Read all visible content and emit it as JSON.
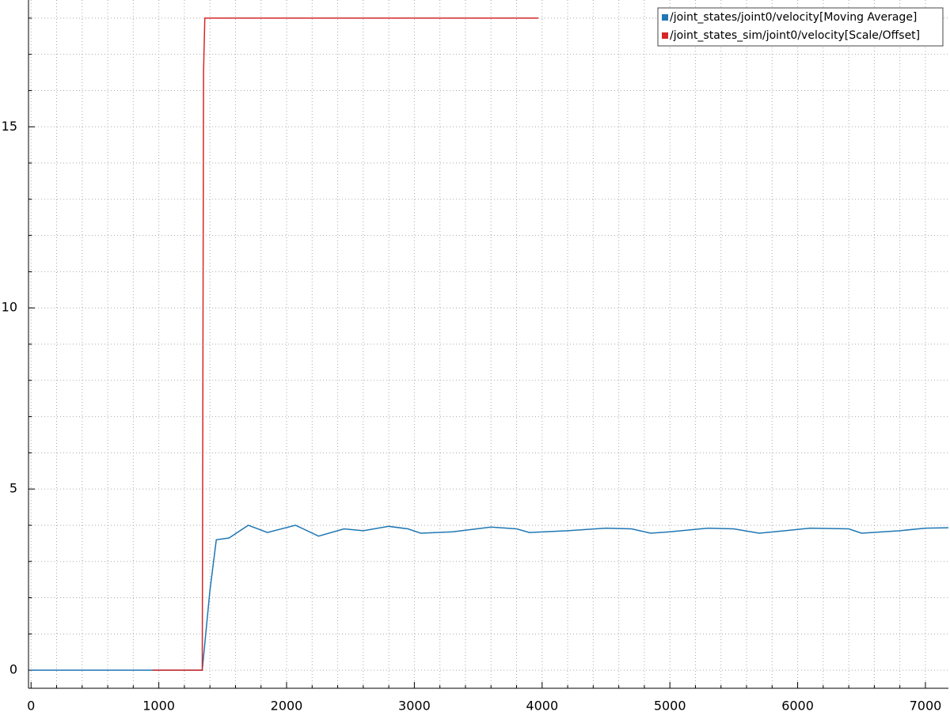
{
  "chart_data": {
    "type": "line",
    "xlim": [
      -20,
      7180
    ],
    "ylim": [
      -0.5,
      18.5
    ],
    "xticks": [
      0,
      1000,
      2000,
      3000,
      4000,
      5000,
      6000,
      7000
    ],
    "yticks": [
      0,
      5,
      10,
      15
    ],
    "minor_xticks": [
      200,
      400,
      600,
      800,
      1200,
      1400,
      1600,
      1800,
      2200,
      2400,
      2600,
      2800,
      3200,
      3400,
      3600,
      3800,
      4200,
      4400,
      4600,
      4800,
      5200,
      5400,
      5600,
      5800,
      6200,
      6400,
      6600,
      6800
    ],
    "minor_yticks": [
      1,
      2,
      3,
      4,
      6,
      7,
      8,
      9,
      11,
      12,
      13,
      14,
      16,
      17,
      18
    ],
    "grid": true,
    "legend": "top-right",
    "series": [
      {
        "name": "/joint_states/joint0/velocity[Moving Average]",
        "color": "#1f77b4",
        "x": [
          0,
          1340,
          1400,
          1450,
          1550,
          1700,
          1850,
          2070,
          2250,
          2450,
          2600,
          2800,
          2950,
          3050,
          3300,
          3600,
          3800,
          3900,
          4200,
          4500,
          4700,
          4850,
          5000,
          5300,
          5500,
          5700,
          5900,
          6100,
          6400,
          6500,
          6800,
          7000,
          7180
        ],
        "values": [
          0,
          0,
          2.2,
          3.6,
          3.65,
          4.0,
          3.8,
          4.0,
          3.7,
          3.9,
          3.85,
          3.97,
          3.9,
          3.78,
          3.82,
          3.95,
          3.9,
          3.8,
          3.85,
          3.92,
          3.9,
          3.78,
          3.82,
          3.92,
          3.9,
          3.78,
          3.85,
          3.92,
          3.9,
          3.78,
          3.85,
          3.92,
          3.93
        ]
      },
      {
        "name": "/joint_states_sim/joint0/velocity[Scale/Offset]",
        "color": "#d62728",
        "x": [
          950,
          1340,
          1350,
          1360,
          3970
        ],
        "values": [
          0,
          0,
          16.5,
          18,
          18
        ]
      }
    ]
  }
}
